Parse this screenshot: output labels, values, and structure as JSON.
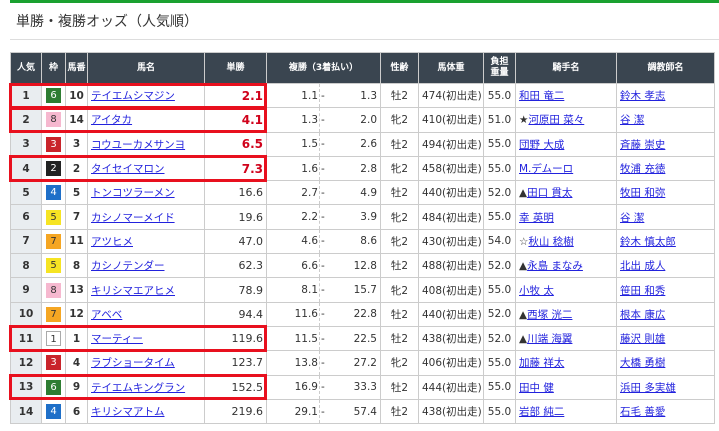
{
  "title": "単勝・複勝オッズ（人気順）",
  "colors": {
    "accent": "#1aa130",
    "highlight": "#e8101e",
    "hot_odds": "#d0021b"
  },
  "waku_colors": {
    "1": [
      "#ffffff",
      "#333"
    ],
    "2": [
      "#222222",
      "#fff"
    ],
    "3": [
      "#c9242b",
      "#fff"
    ],
    "4": [
      "#1e6fc8",
      "#fff"
    ],
    "5": [
      "#f6e423",
      "#333"
    ],
    "6": [
      "#2e7d32",
      "#fff"
    ],
    "7": [
      "#f5a623",
      "#333"
    ],
    "8": [
      "#f6b8cf",
      "#333"
    ]
  },
  "headers": {
    "rank": "人気",
    "waku": "枠",
    "num": "馬番",
    "name": "馬名",
    "win": "単勝",
    "place": "複勝（3着払い）",
    "sex_age": "性齢",
    "weight": "馬体重",
    "burden_1": "負担",
    "burden_2": "重量",
    "jockey": "騎手名",
    "trainer": "調教師名"
  },
  "highlighted_ranks": [
    1,
    2,
    4,
    11,
    13
  ],
  "rows": [
    {
      "rank": "1",
      "waku": "6",
      "num": "10",
      "name": "テイエムシマジン",
      "win": "2.1",
      "pmin": "1.1",
      "pmax": "1.3",
      "sex": "牡2",
      "weight": "474(初出走)",
      "burden": "55.0",
      "mark": "",
      "jockey": "和田 竜二",
      "trainer": "鈴木 孝志"
    },
    {
      "rank": "2",
      "waku": "8",
      "num": "14",
      "name": "アイタカ",
      "win": "4.1",
      "pmin": "1.3",
      "pmax": "2.0",
      "sex": "牝2",
      "weight": "410(初出走)",
      "burden": "51.0",
      "mark": "★",
      "jockey": "河原田 菜々",
      "trainer": "谷 潔"
    },
    {
      "rank": "3",
      "waku": "3",
      "num": "3",
      "name": "コウユーカメサンヨ",
      "win": "6.5",
      "pmin": "1.5",
      "pmax": "2.6",
      "sex": "牡2",
      "weight": "494(初出走)",
      "burden": "55.0",
      "mark": "",
      "jockey": "団野 大成",
      "trainer": "斉藤 崇史"
    },
    {
      "rank": "4",
      "waku": "2",
      "num": "2",
      "name": "タイセイマロン",
      "win": "7.3",
      "pmin": "1.6",
      "pmax": "2.8",
      "sex": "牝2",
      "weight": "458(初出走)",
      "burden": "55.0",
      "mark": "",
      "jockey": "M.デムーロ",
      "trainer": "牧浦 充徳"
    },
    {
      "rank": "5",
      "waku": "4",
      "num": "5",
      "name": "トンコツラーメン",
      "win": "16.6",
      "pmin": "2.7",
      "pmax": "4.9",
      "sex": "牡2",
      "weight": "440(初出走)",
      "burden": "52.0",
      "mark": "▲",
      "jockey": "田口 貫太",
      "trainer": "牧田 和弥"
    },
    {
      "rank": "6",
      "waku": "5",
      "num": "7",
      "name": "カシノマーメイド",
      "win": "19.6",
      "pmin": "2.2",
      "pmax": "3.9",
      "sex": "牝2",
      "weight": "484(初出走)",
      "burden": "55.0",
      "mark": "",
      "jockey": "幸 英明",
      "trainer": "谷 潔"
    },
    {
      "rank": "7",
      "waku": "7",
      "num": "11",
      "name": "アツヒメ",
      "win": "47.0",
      "pmin": "4.6",
      "pmax": "8.6",
      "sex": "牝2",
      "weight": "430(初出走)",
      "burden": "54.0",
      "mark": "☆",
      "jockey": "秋山 稔樹",
      "trainer": "鈴木 慎太郎"
    },
    {
      "rank": "8",
      "waku": "5",
      "num": "8",
      "name": "カシノテンダー",
      "win": "62.3",
      "pmin": "6.6",
      "pmax": "12.8",
      "sex": "牡2",
      "weight": "488(初出走)",
      "burden": "52.0",
      "mark": "▲",
      "jockey": "永島 まなみ",
      "trainer": "北出 成人"
    },
    {
      "rank": "9",
      "waku": "8",
      "num": "13",
      "name": "キリシマエアヒメ",
      "win": "78.9",
      "pmin": "8.1",
      "pmax": "15.7",
      "sex": "牝2",
      "weight": "408(初出走)",
      "burden": "55.0",
      "mark": "",
      "jockey": "小牧 太",
      "trainer": "笹田 和秀"
    },
    {
      "rank": "10",
      "waku": "7",
      "num": "12",
      "name": "アベベ",
      "win": "94.4",
      "pmin": "11.6",
      "pmax": "22.8",
      "sex": "牡2",
      "weight": "440(初出走)",
      "burden": "52.0",
      "mark": "▲",
      "jockey": "西塚 洸二",
      "trainer": "根本 康広"
    },
    {
      "rank": "11",
      "waku": "1",
      "num": "1",
      "name": "マーティー",
      "win": "119.6",
      "pmin": "11.5",
      "pmax": "22.5",
      "sex": "牡2",
      "weight": "438(初出走)",
      "burden": "52.0",
      "mark": "▲",
      "jockey": "川端 海翼",
      "trainer": "藤沢 則雄"
    },
    {
      "rank": "12",
      "waku": "3",
      "num": "4",
      "name": "ラブショータイム",
      "win": "123.7",
      "pmin": "13.8",
      "pmax": "27.2",
      "sex": "牝2",
      "weight": "406(初出走)",
      "burden": "55.0",
      "mark": "",
      "jockey": "加藤 祥太",
      "trainer": "大橋 勇樹"
    },
    {
      "rank": "13",
      "waku": "6",
      "num": "9",
      "name": "テイエムキングラン",
      "win": "152.5",
      "pmin": "16.9",
      "pmax": "33.3",
      "sex": "牡2",
      "weight": "444(初出走)",
      "burden": "55.0",
      "mark": "",
      "jockey": "田中 健",
      "trainer": "浜田 多実雄"
    },
    {
      "rank": "14",
      "waku": "4",
      "num": "6",
      "name": "キリシマアトム",
      "win": "219.6",
      "pmin": "29.1",
      "pmax": "57.4",
      "sex": "牡2",
      "weight": "438(初出走)",
      "burden": "55.0",
      "mark": "",
      "jockey": "岩部 純二",
      "trainer": "石毛 善愛"
    }
  ],
  "place_separator": "-"
}
